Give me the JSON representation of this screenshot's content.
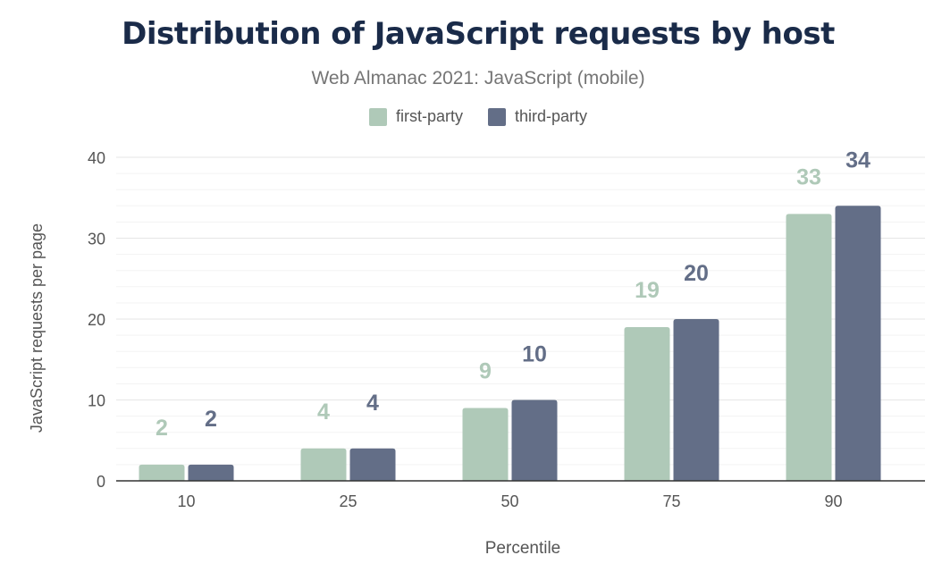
{
  "chart_data": {
    "type": "bar",
    "title": "Distribution of JavaScript requests by host",
    "subtitle": "Web Almanac 2021: JavaScript (mobile)",
    "xlabel": "Percentile",
    "ylabel": "JavaScript requests per page",
    "categories": [
      "10",
      "25",
      "50",
      "75",
      "90"
    ],
    "series": [
      {
        "name": "first-party",
        "color": "#afc9b8",
        "values": [
          2,
          4,
          9,
          19,
          33
        ]
      },
      {
        "name": "third-party",
        "color": "#636e87",
        "values": [
          2,
          4,
          10,
          20,
          34
        ]
      }
    ],
    "ylim": [
      0,
      40
    ],
    "yticks": [
      0,
      10,
      20,
      30,
      40
    ],
    "grid": true,
    "legend": "top-center"
  }
}
